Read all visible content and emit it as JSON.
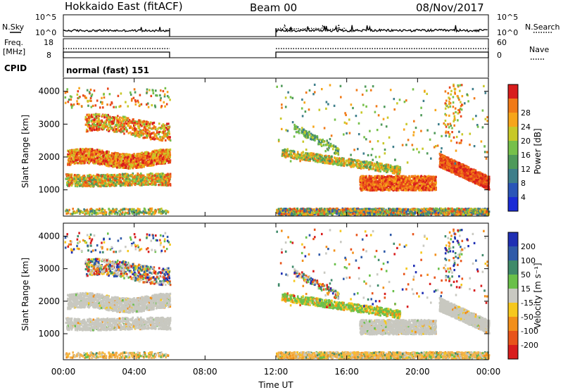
{
  "header": {
    "station": "Hokkaido East (fitACF)",
    "beam": "Beam 00",
    "date": "08/Nov/2017"
  },
  "top_panel": {
    "left_label": "N.Sky",
    "right_label": "N.Search",
    "left_ticks": [
      "10^5",
      "10^0"
    ],
    "right_ticks": [
      "10^5",
      "10^0"
    ]
  },
  "freq_panel": {
    "left_label_line1": "Freq.",
    "left_label_line2": "[MHz]",
    "right_label": "Nave",
    "left_ticks": [
      "18",
      "8"
    ],
    "right_ticks": [
      "60",
      "0"
    ],
    "cpid_label": "CPID",
    "cpid_text": "normal (fast) 151"
  },
  "colors": {
    "power": [
      "#1a2bd6",
      "#2a55b8",
      "#3e7e8a",
      "#4f9a5a",
      "#76c04a",
      "#c8c828",
      "#f6a51a",
      "#f07a18",
      "#e8461a",
      "#d81d1d"
    ],
    "velocity": [
      "#1f2fb4",
      "#2f5aa8",
      "#3f8a6a",
      "#6ac04a",
      "#c9c9c2",
      "#c9c9c2",
      "#f6c81e",
      "#f28f1a",
      "#e8541a",
      "#d81d1d"
    ],
    "gray": "#c8c8c0"
  },
  "chart_data": [
    {
      "type": "heatmap",
      "name": "power",
      "ylabel": "Slant Range [km]",
      "yticks": [
        "1000",
        "2000",
        "3000",
        "4000"
      ],
      "colorbar_label": "Power [dB]",
      "colorbar_ticks": [
        "4",
        "8",
        "12",
        "16",
        "20",
        "24",
        "28"
      ],
      "colorbar_range": [
        0,
        32
      ],
      "ylim": [
        200,
        4400
      ],
      "xlim": [
        0,
        24
      ],
      "data_gap": [
        6,
        12
      ],
      "echo_regions": [
        {
          "t0": 0.1,
          "t1": 6.0,
          "r0": 1100,
          "r1": 1500,
          "level": "mixed"
        },
        {
          "t0": 0.2,
          "t1": 6.0,
          "r0": 1700,
          "r1": 2300,
          "level": "strong"
        },
        {
          "t0": 1.2,
          "t1": 6.0,
          "r0": 2400,
          "r1": 3300,
          "level": "moderate"
        },
        {
          "t0": 16.5,
          "t1": 21.0,
          "r0": 900,
          "r1": 1500,
          "level": "strong"
        },
        {
          "t0": 21.3,
          "t1": 24.0,
          "r0": 1100,
          "r1": 2000,
          "level": "strong"
        },
        {
          "t0": 12.3,
          "t1": 19.0,
          "r0": 1500,
          "r1": 2100,
          "level": "moderate"
        }
      ]
    },
    {
      "type": "heatmap",
      "name": "velocity",
      "ylabel": "Slant Range [km]",
      "yticks": [
        "1000",
        "2000",
        "3000",
        "4000"
      ],
      "colorbar_label": "Velocity [m s⁻¹]",
      "colorbar_ticks": [
        "200",
        "100",
        "50",
        "15",
        "-15",
        "-50",
        "-100",
        "-200"
      ],
      "colorbar_range": [
        -250,
        250
      ],
      "ylim": [
        200,
        4400
      ],
      "xlim": [
        0,
        24
      ],
      "data_gap": [
        6,
        12
      ],
      "xticks": [
        "00:00",
        "04:00",
        "08:00",
        "12:00",
        "16:00",
        "20:00",
        "00:00"
      ],
      "xlabel": "Time UT"
    }
  ]
}
